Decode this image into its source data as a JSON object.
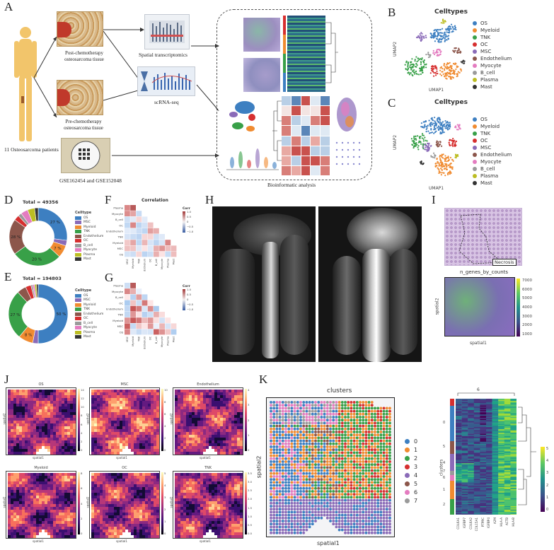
{
  "labels": [
    "A",
    "B",
    "C",
    "D",
    "E",
    "F",
    "G",
    "H",
    "I",
    "J",
    "K"
  ],
  "panelA": {
    "patients": "11 Osteosarcoma patients",
    "post": "Post-chemotherapy osteosarcoma tissue",
    "pre": "Pre-chemotherapy osteosarcoma tissue",
    "spatial": "Spatial transcriptomics",
    "scrna": "scRNA-seq",
    "gse": "GSE162454 and GSE152048",
    "bioinfo": "Bioinformatic analysis"
  },
  "celltypes": {
    "title": "Celltypes",
    "xlabel": "UMAP1",
    "ylabel": "UMAP2",
    "items": [
      {
        "name": "OS",
        "color": "#3d7fc1"
      },
      {
        "name": "Myeloid",
        "color": "#f08b30"
      },
      {
        "name": "TNK",
        "color": "#38a048"
      },
      {
        "name": "OC",
        "color": "#d62f2f"
      },
      {
        "name": "MSC",
        "color": "#8a6bb8"
      },
      {
        "name": "Endothelium",
        "color": "#8c564b"
      },
      {
        "name": "Myocyte",
        "color": "#e47cc0"
      },
      {
        "name": "B_cell",
        "color": "#9a9a9a"
      },
      {
        "name": "Plasma",
        "color": "#bcbd22"
      },
      {
        "name": "Mast",
        "color": "#333333"
      }
    ]
  },
  "panelD": {
    "title": "Total = 49356",
    "legend_title": "Celltype",
    "labels_in": [
      "27 %",
      "7 %",
      "20 %",
      "28 %"
    ],
    "chart_data": {
      "type": "pie",
      "categories": [
        "OS",
        "MSC",
        "Myeloid",
        "TNK",
        "Endothelium",
        "OC",
        "B_cell",
        "Myocyte",
        "Plasma",
        "Mast"
      ],
      "values": [
        27,
        3,
        7,
        28,
        20,
        3,
        2,
        4,
        4,
        2
      ]
    }
  },
  "panelE": {
    "title": "Total = 194803",
    "legend_title": "Celltype",
    "labels_in": [
      "50 %",
      "8 %",
      "27 %"
    ],
    "chart_data": {
      "type": "pie",
      "categories": [
        "OS",
        "MSC",
        "Myeloid",
        "TNK",
        "Endothelium",
        "OC",
        "B_cell",
        "Myocyte",
        "Plasma",
        "Mast"
      ],
      "values": [
        50,
        3,
        8,
        27,
        5,
        3,
        1,
        1,
        1,
        1
      ]
    }
  },
  "panelF": {
    "title": "Correlation",
    "cbar_title": "Corr",
    "ticks": [
      "1.0",
      "0.5",
      "0",
      "−0.5",
      "−1.0"
    ],
    "rows": [
      "Plasma",
      "Myocyte",
      "B_cell",
      "OC",
      "Endothelium",
      "TNK",
      "Myeloid",
      "MSC",
      "OS"
    ],
    "cols": [
      "MSC",
      "Myeloid",
      "TNK",
      "Endothelium",
      "OC",
      "B_cell",
      "Myocyte",
      "Plasma",
      "Mast"
    ]
  },
  "panelG": {
    "cbar_title": "Corr",
    "ticks": [
      "1.0",
      "0.5",
      "0",
      "−0.5",
      "−1.0"
    ],
    "rows": [
      "Plasma",
      "Myocyte",
      "B_cell",
      "OC",
      "Endothelium",
      "TNK",
      "Myeloid",
      "MSC",
      "OS"
    ],
    "cols": [
      "MSC",
      "Myeloid",
      "TNK",
      "Endothelium",
      "OC",
      "B_cell",
      "Myocyte",
      "Plasma",
      "Mast"
    ]
  },
  "panelI": {
    "necrosis": "Necrosis",
    "title": "n_genes_by_counts",
    "xlabel": "spatial1",
    "ylabel": "spatial2",
    "ticks": [
      "7000",
      "6000",
      "5000",
      "4000",
      "3000",
      "2000",
      "1000"
    ]
  },
  "panelJ": {
    "xlabel": "spatial1",
    "ylabel": "spatial2",
    "maps": [
      {
        "title": "OS",
        "ticks": [
          "14",
          "12",
          "10",
          "8",
          "6",
          "4",
          "2",
          "0"
        ]
      },
      {
        "title": "MSC",
        "ticks": [
          "10",
          "8",
          "6",
          "4",
          "2",
          "0"
        ]
      },
      {
        "title": "Endothelium",
        "ticks": [
          "4",
          "3",
          "2",
          "1",
          "0"
        ]
      },
      {
        "title": "Myeloid",
        "ticks": [
          "8",
          "6",
          "4",
          "2",
          "0"
        ]
      },
      {
        "title": "OC",
        "ticks": [
          "5",
          "4",
          "3",
          "2",
          "1",
          "0"
        ]
      },
      {
        "title": "TNK",
        "ticks": [
          "3.5",
          "3.0",
          "2.5",
          "2.0",
          "1.5",
          "1.0",
          "0.5",
          "0.0"
        ]
      }
    ]
  },
  "panelK": {
    "title": "clusters",
    "xlabel": "spatial1",
    "ylabel": "spatial2",
    "clusters": [
      {
        "name": "0",
        "color": "#3d7fc1"
      },
      {
        "name": "1",
        "color": "#f08b30"
      },
      {
        "name": "2",
        "color": "#38a048"
      },
      {
        "name": "3",
        "color": "#d62f2f"
      },
      {
        "name": "4",
        "color": "#8a6bb8"
      },
      {
        "name": "5",
        "color": "#8c564b"
      },
      {
        "name": "6",
        "color": "#e47cc0"
      },
      {
        "name": "7",
        "color": "#9a9a9a"
      }
    ],
    "heatmap": {
      "top_label": "6",
      "ylabel": "clusters",
      "row_labels": [
        "0",
        "5",
        "4",
        "7",
        "6",
        "1",
        "2"
      ],
      "genes": [
        "COL6A1",
        "IGFBP7",
        "COL6A2",
        "COL15A1",
        "PTPRC",
        "IGFBP4",
        "A2M",
        "HLA-A",
        "ACTB",
        "HLA-B"
      ],
      "ticks": [
        "5",
        "4",
        "3",
        "2",
        "1",
        "0"
      ]
    }
  }
}
